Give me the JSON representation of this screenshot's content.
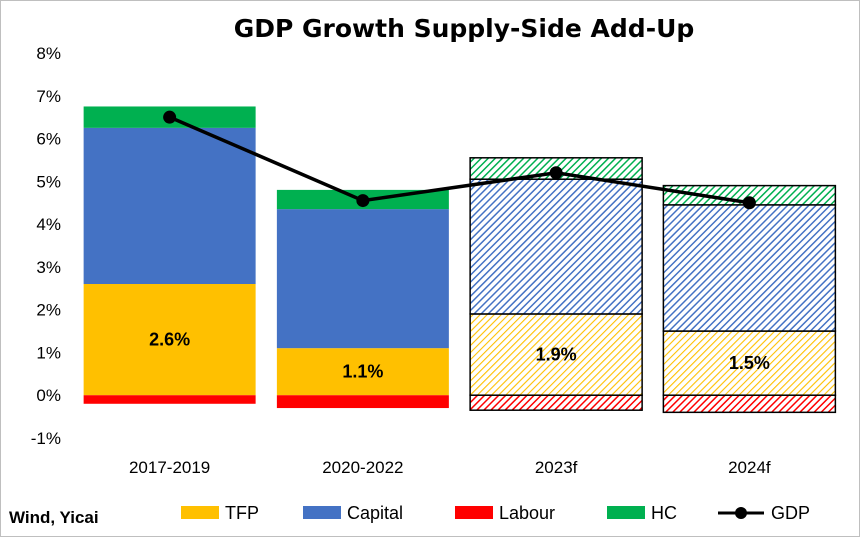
{
  "chart_data": {
    "type": "bar",
    "title": "GDP Growth Supply-Side Add-Up",
    "source": "Wind, Yicai",
    "categories": [
      "2017-2019",
      "2020-2022",
      "2023f",
      "2024f"
    ],
    "forecast": [
      false,
      false,
      true,
      true
    ],
    "series": [
      {
        "name": "TFP",
        "color": "#ffc000",
        "values": [
          2.6,
          1.1,
          1.9,
          1.5
        ]
      },
      {
        "name": "Capital",
        "color": "#4472c4",
        "values": [
          3.65,
          3.25,
          3.15,
          2.95
        ]
      },
      {
        "name": "Labour",
        "color": "#ff0000",
        "values": [
          -0.2,
          -0.3,
          -0.35,
          -0.4
        ]
      },
      {
        "name": "HC",
        "color": "#00b050",
        "values": [
          0.5,
          0.45,
          0.5,
          0.45
        ]
      }
    ],
    "line": {
      "name": "GDP",
      "color": "#000000",
      "values": [
        6.5,
        4.55,
        5.2,
        4.5
      ]
    },
    "data_labels": [
      "2.6%",
      "1.1%",
      "1.9%",
      "1.5%"
    ],
    "y_ticks": [
      "-1%",
      "0%",
      "1%",
      "2%",
      "3%",
      "4%",
      "5%",
      "6%",
      "7%",
      "8%"
    ],
    "ylim": [
      -1,
      8
    ],
    "legend_position": "bottom",
    "grid": false
  }
}
